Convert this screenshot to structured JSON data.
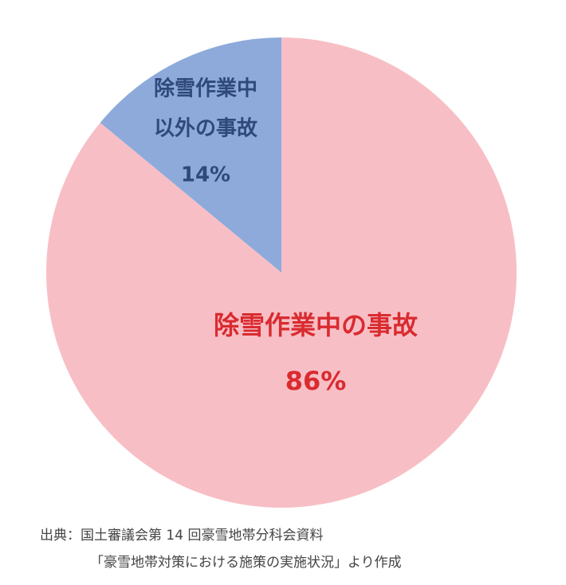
{
  "chart_data": {
    "type": "pie",
    "categories": [
      [
        "除雪作業中の事故"
      ],
      [
        "除雪作業中",
        "以外の事故"
      ]
    ],
    "values": [
      86,
      14
    ],
    "value_labels": [
      "86%",
      "14%"
    ],
    "colors": [
      "#f7bfc5",
      "#8eaadb"
    ],
    "label_colors": [
      "#d92b30",
      "#2f4a7a"
    ],
    "source": [
      "出典：国土審議会第 14 回豪雪地帯分科会資料",
      "「豪雪地帯対策における施策の実施状況」より作成"
    ]
  }
}
